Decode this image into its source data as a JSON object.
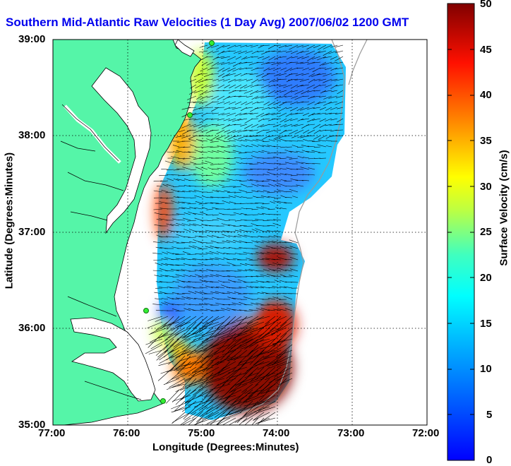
{
  "title": "Southern Mid-Atlantic Raw Velocities (1 Day Avg) 2007/06/02 1200 GMT",
  "x_axis": {
    "label": "Longitude (Degrees:Minutes)",
    "ticks": [
      "77:00",
      "76:00",
      "75:00",
      "74:00",
      "73:00",
      "72:00"
    ]
  },
  "y_axis": {
    "label": "Latitude (Degrees:Minutes)",
    "ticks": [
      "39:00",
      "38:00",
      "37:00",
      "36:00",
      "35:00"
    ]
  },
  "colorbar": {
    "label": "Surface Velocity (cm/s)",
    "ticks": [
      "50",
      "45",
      "40",
      "35",
      "30",
      "25",
      "20",
      "15",
      "10",
      "5",
      "0"
    ],
    "min": 0,
    "max": 50,
    "colormap": "jet"
  },
  "colors": {
    "title": "#0000ee",
    "land": "#55f5a8",
    "grid": "dotted-black"
  }
}
